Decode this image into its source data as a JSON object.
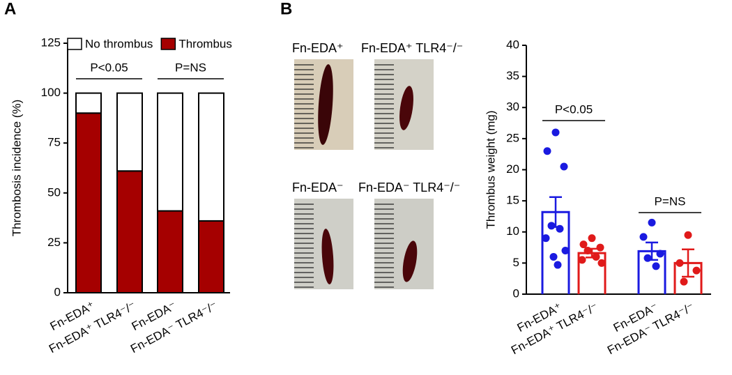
{
  "panels": [
    "A",
    "B"
  ],
  "photos": [
    {
      "label": "Fn-EDA⁺"
    },
    {
      "label": "Fn-EDA⁺ TLR4⁻/⁻"
    },
    {
      "label": "Fn-EDA⁻"
    },
    {
      "label": "Fn-EDA⁻ TLR4⁻/⁻"
    }
  ],
  "chart_data": [
    {
      "type": "stacked_bar",
      "y_label": "Thrombosis incidence (%)",
      "categories": [
        "Fn-EDA⁺",
        "Fn-EDA⁺ TLR4⁻/⁻",
        "Fn-EDA⁻",
        "Fn-EDA⁻ TLR4⁻/⁻"
      ],
      "series": [
        {
          "name": "Thrombus",
          "color": "#a50000",
          "values": [
            90,
            61,
            41,
            36
          ]
        },
        {
          "name": "No thrombus",
          "color": "#ffffff",
          "values": [
            10,
            39,
            59,
            64
          ]
        }
      ],
      "ylim": [
        0,
        125
      ],
      "yticks": [
        0,
        25,
        50,
        75,
        100,
        125
      ],
      "annotations": [
        "P<0.05",
        "P=NS"
      ]
    },
    {
      "type": "bar_points",
      "y_label": "Thrombus weight (mg)",
      "categories": [
        "Fn-EDA⁺",
        "Fn-EDA⁺ TLR4⁻/⁻",
        "Fn-EDA⁻",
        "Fn-EDA⁻ TLR4⁻/⁻"
      ],
      "colors": [
        "#1a1ae0",
        "#e01a1a",
        "#1a1ae0",
        "#e01a1a"
      ],
      "values": [
        13.2,
        6.6,
        6.9,
        5.0
      ],
      "errors": [
        2.4,
        0.7,
        1.4,
        2.2
      ],
      "points": [
        [
          26,
          23,
          20.5,
          11,
          10.5,
          9,
          7,
          6,
          4.7
        ],
        [
          9,
          8,
          7.5,
          7,
          6,
          5.5,
          5
        ],
        [
          11.5,
          9.2,
          6.5,
          5.8,
          4.5
        ],
        [
          9.5,
          5,
          3.8,
          2
        ]
      ],
      "ylim": [
        0,
        40
      ],
      "yticks": [
        0,
        5,
        10,
        15,
        20,
        25,
        30,
        35,
        40
      ],
      "annotations": [
        "P<0.05",
        "P=NS"
      ]
    }
  ]
}
